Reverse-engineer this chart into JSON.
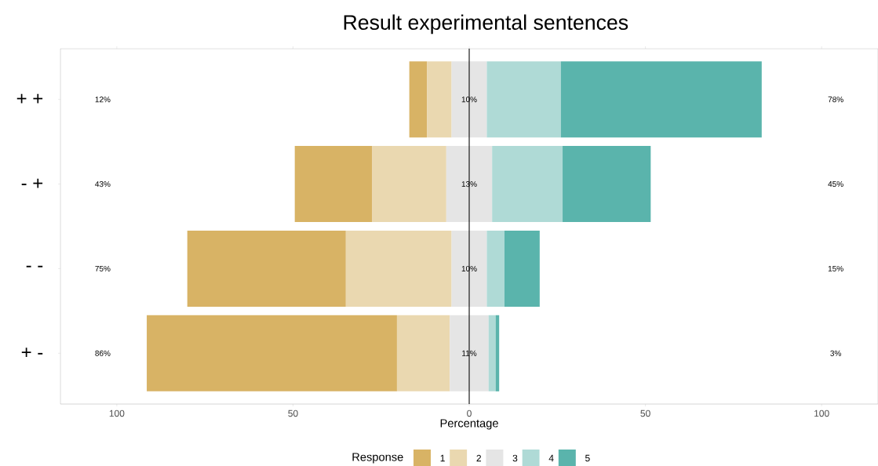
{
  "chart_data": {
    "type": "bar",
    "orientation": "horizontal",
    "title": "Result experimental sentences",
    "xlabel": "Percentage",
    "legend_title": "Response",
    "legend": "bottom",
    "categories": [
      "+ +",
      "- +",
      "- -",
      "+ -"
    ],
    "series": [
      {
        "name": "1",
        "color": "#d8b365",
        "base": [
          -17,
          -49.5,
          -80,
          -91.5
        ],
        "values": [
          5,
          22,
          45,
          71
        ]
      },
      {
        "name": "2",
        "color": "#ead8b0",
        "base": [
          -12,
          -27.5,
          -35,
          -20.5
        ],
        "values": [
          7,
          21,
          30,
          15
        ]
      },
      {
        "name": "3",
        "color": "#e5e5e5",
        "base": [
          -5,
          -6.5,
          -5,
          -5.5
        ],
        "values": [
          10,
          13,
          10,
          11
        ]
      },
      {
        "name": "4",
        "color": "#afdad6",
        "base": [
          5,
          6.5,
          5,
          5.5
        ],
        "values": [
          21,
          20,
          5,
          2
        ]
      },
      {
        "name": "5",
        "color": "#5ab4ac",
        "base": [
          26,
          26.5,
          10,
          7.5
        ],
        "values": [
          57,
          25,
          10,
          1
        ]
      }
    ],
    "xlim": [
      -116,
      116
    ],
    "xticks": [
      {
        "value": -100,
        "label": "100"
      },
      {
        "value": -50,
        "label": "50"
      },
      0,
      50,
      100
    ],
    "ref_lines": [
      {
        "axis": "x",
        "value": 0,
        "color": "#000000"
      }
    ],
    "annotations": [
      "12%",
      "10%",
      "78%",
      "43%",
      "13%",
      "45%",
      "75%",
      "10%",
      "15%",
      "86%",
      "11%",
      "3%"
    ]
  }
}
